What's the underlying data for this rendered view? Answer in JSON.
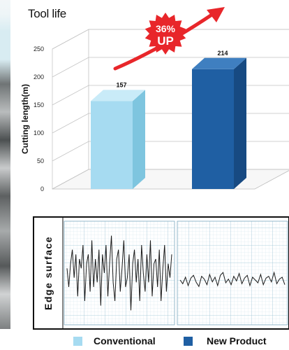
{
  "chart_data": [
    {
      "type": "bar",
      "title": "Tool life",
      "ylabel": "Cutting length(m)",
      "categories": [
        "Conventional",
        "New Product"
      ],
      "values": [
        157,
        214
      ],
      "ylim": [
        0,
        250
      ],
      "yticks": [
        0,
        50,
        100,
        150,
        200,
        250
      ],
      "colors": [
        "#a6dbf1",
        "#1f5fa3"
      ],
      "annotation": {
        "percent": "36%",
        "text": "UP"
      }
    },
    {
      "type": "line",
      "ylabel": "Edge surface",
      "panels": [
        "Conventional",
        "New Product"
      ],
      "series": [
        {
          "name": "Conventional",
          "values": [
            0.1,
            -0.3,
            0.2,
            0.5,
            -0.1,
            0.4,
            -0.5,
            0.3,
            0.1,
            0.6,
            -0.6,
            0.2,
            0.4,
            -0.4,
            0.7,
            -0.3,
            0.3,
            -0.2,
            0.5,
            -0.7,
            0.4,
            0.0,
            0.6,
            -0.5,
            0.2,
            0.8,
            -0.2,
            -0.6,
            0.3,
            0.5,
            -0.4,
            0.1,
            0.7,
            -0.3,
            -0.1,
            0.4,
            -0.8,
            0.2,
            0.5,
            -0.2,
            0.3,
            -0.6,
            0.6,
            0.0,
            -0.4,
            0.4,
            -0.2,
            0.7,
            -0.5,
            0.2,
            0.3,
            -0.3,
            0.5,
            -0.6,
            0.1,
            0.6,
            -0.4,
            0.2,
            -0.1,
            0.4
          ]
        },
        {
          "name": "New Product",
          "values": [
            0.0,
            -0.08,
            0.06,
            -0.12,
            0.04,
            0.1,
            -0.05,
            -0.14,
            0.08,
            0.02,
            -0.1,
            0.12,
            -0.04,
            0.06,
            -0.12,
            0.1,
            0.16,
            -0.06,
            0.02,
            -0.1,
            0.08,
            -0.02,
            0.14,
            -0.08,
            0.04,
            0.1,
            -0.12,
            0.06,
            0.0,
            -0.06,
            0.12,
            -0.1,
            0.04,
            0.08,
            -0.04,
            0.16,
            -0.08,
            0.02,
            0.06,
            -0.1
          ]
        }
      ]
    }
  ],
  "legend": [
    {
      "label": "Conventional",
      "color": "#a6dbf1"
    },
    {
      "label": "New Product",
      "color": "#1f5fa3"
    }
  ]
}
